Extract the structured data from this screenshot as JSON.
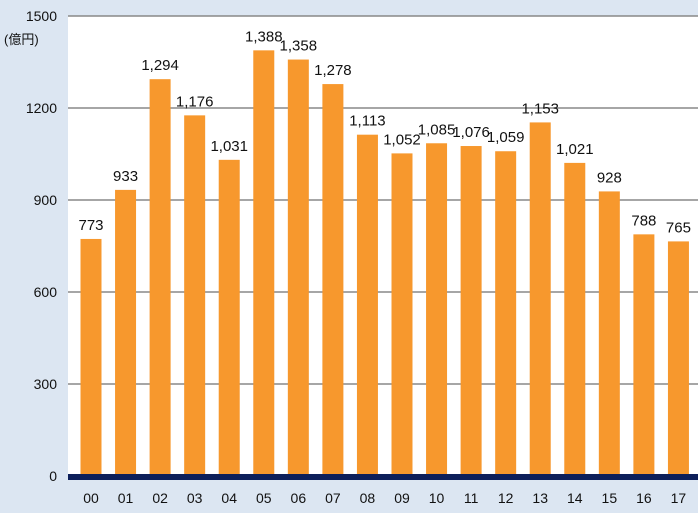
{
  "chart_data": {
    "type": "bar",
    "categories": [
      "00",
      "01",
      "02",
      "03",
      "04",
      "05",
      "06",
      "07",
      "08",
      "09",
      "10",
      "11",
      "12",
      "13",
      "14",
      "15",
      "16",
      "17"
    ],
    "values": [
      773,
      933,
      1294,
      1176,
      1031,
      1388,
      1358,
      1278,
      1113,
      1052,
      1085,
      1076,
      1059,
      1153,
      1021,
      928,
      788,
      765
    ],
    "value_labels": [
      "773",
      "933",
      "1,294",
      "1,176",
      "1,031",
      "1,388",
      "1,358",
      "1,278",
      "1,113",
      "1,052",
      "1,085",
      "1,076",
      "1,059",
      "1,153",
      "1,021",
      "928",
      "788",
      "765"
    ],
    "ylim": [
      0,
      1500
    ],
    "yticks": [
      0,
      300,
      600,
      900,
      1200,
      1500
    ],
    "ylabel": "(億円)",
    "title": "",
    "xlabel": "",
    "grid": true,
    "legend": "none"
  },
  "colors": {
    "background": "#dce6f2",
    "plot_background": "#ffffff",
    "bar": "#f7982d",
    "grid": "#888888",
    "baseline": "#0d1f5a"
  }
}
